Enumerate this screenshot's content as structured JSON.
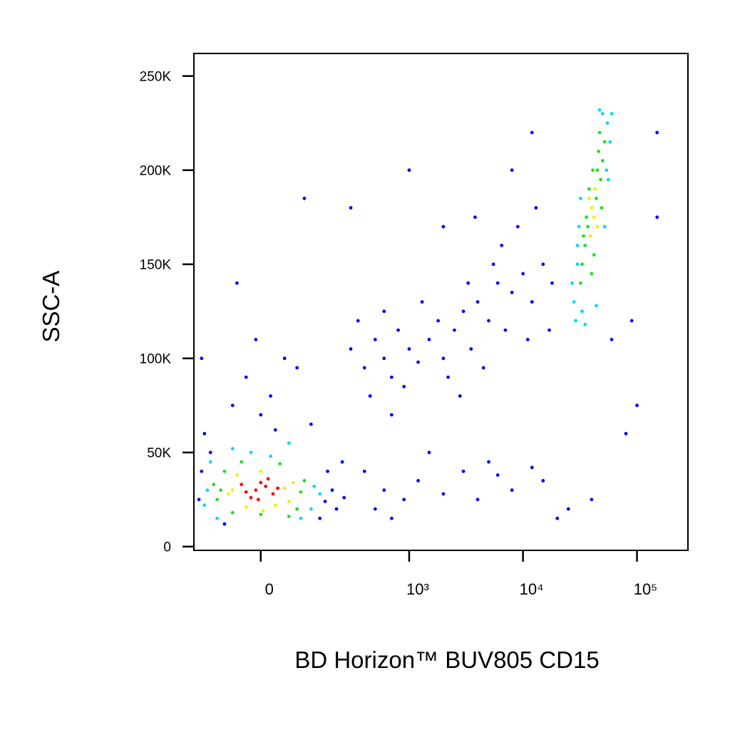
{
  "chart_data": {
    "type": "scatter",
    "xlabel": "BD Horizon™ BUV805 CD15",
    "ylabel": "SSC-A",
    "xscale": "biexponential",
    "xlim": [
      -180,
      280000
    ],
    "ylim": [
      -2000,
      262000
    ],
    "xticks": [
      0,
      {
        "value": 1000,
        "label": "10³"
      },
      {
        "value": 10000,
        "label": "10⁴"
      },
      {
        "value": 100000,
        "label": "10⁵"
      }
    ],
    "yticks": [
      0,
      {
        "value": 50000,
        "label": "50K"
      },
      {
        "value": 100000,
        "label": "100K"
      },
      {
        "value": 150000,
        "label": "150K"
      },
      {
        "value": 200000,
        "label": "200K"
      },
      {
        "value": 250000,
        "label": "250K"
      }
    ],
    "series": [
      {
        "color": "#0000ff",
        "x": [
          -160,
          -150,
          170,
          200,
          220,
          180,
          -140,
          0,
          20,
          -30,
          50,
          -10,
          80,
          -60,
          30,
          120,
          250,
          -120,
          260,
          150,
          -80,
          300,
          400,
          500,
          600,
          700,
          800,
          1000,
          1200,
          1500,
          1800,
          2000,
          2500,
          3000,
          3500,
          4000,
          5000,
          6000,
          7000,
          8000,
          10000,
          12000,
          15000,
          18000,
          600,
          900,
          2200,
          4500,
          1300,
          3300,
          6500,
          9000,
          13000,
          17000,
          450,
          350,
          2800,
          5500,
          700,
          11000,
          3800,
          400,
          600,
          900,
          1200,
          2000,
          3000,
          4000,
          6000,
          8000,
          12000,
          20000,
          25000,
          40000,
          500,
          1500,
          5000,
          700,
          15000,
          100,
          -50,
          300,
          1000,
          2000,
          8000,
          12000,
          150000,
          150000,
          90000,
          100000,
          80000,
          60000,
          -150
        ],
        "y": [
          25000,
          40000,
          24000,
          30000,
          20000,
          40000,
          60000,
          70000,
          80000,
          90000,
          100000,
          110000,
          95000,
          75000,
          62000,
          65000,
          45000,
          50000,
          26000,
          15000,
          12000,
          105000,
          95000,
          110000,
          100000,
          90000,
          115000,
          105000,
          98000,
          110000,
          120000,
          100000,
          115000,
          125000,
          105000,
          130000,
          120000,
          140000,
          115000,
          135000,
          145000,
          130000,
          150000,
          140000,
          125000,
          85000,
          90000,
          95000,
          130000,
          140000,
          160000,
          170000,
          180000,
          115000,
          80000,
          120000,
          80000,
          150000,
          70000,
          110000,
          175000,
          40000,
          30000,
          25000,
          35000,
          28000,
          40000,
          25000,
          38000,
          30000,
          42000,
          15000,
          20000,
          25000,
          20000,
          50000,
          45000,
          15000,
          35000,
          185000,
          140000,
          180000,
          200000,
          170000,
          200000,
          220000,
          220000,
          175000,
          120000,
          75000,
          60000,
          110000,
          100000
        ]
      },
      {
        "color": "#00d8ff",
        "x": [
          -130,
          130,
          -120,
          120,
          -140,
          150,
          -20,
          20,
          -100,
          90,
          -60,
          60,
          28000,
          55000,
          30000,
          58000,
          31000,
          54000,
          29000,
          60000,
          33000,
          50000,
          27000,
          47000,
          35000,
          56000,
          32000,
          52000,
          30000,
          44000
        ],
        "y": [
          30000,
          32000,
          45000,
          20000,
          22000,
          28000,
          50000,
          48000,
          15000,
          15000,
          52000,
          55000,
          130000,
          225000,
          150000,
          215000,
          170000,
          200000,
          120000,
          230000,
          125000,
          230000,
          140000,
          232000,
          118000,
          195000,
          185000,
          170000,
          160000,
          128000
        ]
      },
      {
        "color": "#20e020",
        "x": [
          -90,
          90,
          -80,
          80,
          -100,
          100,
          -40,
          40,
          0,
          -110,
          60,
          -60,
          35000,
          48000,
          37000,
          50000,
          41000,
          33000,
          46000,
          40000,
          52000,
          36000,
          44000,
          47000,
          32000,
          38000,
          42000,
          49000,
          34000,
          45000
        ],
        "y": [
          30000,
          29000,
          40000,
          20000,
          25000,
          35000,
          45000,
          44000,
          17000,
          33000,
          16000,
          18000,
          160000,
          195000,
          170000,
          205000,
          200000,
          150000,
          210000,
          145000,
          215000,
          175000,
          185000,
          220000,
          140000,
          190000,
          155000,
          180000,
          165000,
          200000
        ]
      },
      {
        "color": "#f0f000",
        "x": [
          -60,
          50,
          -50,
          60,
          0,
          -70,
          70,
          -30,
          30,
          5,
          40000,
          42000,
          38000,
          45000,
          43000,
          39000
        ],
        "y": [
          30000,
          31000,
          38000,
          24000,
          40000,
          28000,
          34000,
          21000,
          22000,
          19000,
          180000,
          175000,
          185000,
          170000,
          190000,
          165000
        ]
      },
      {
        "color": "#ff0000",
        "x": [
          -10,
          10,
          -30,
          25,
          0,
          -20,
          15,
          -5,
          35,
          -40
        ],
        "y": [
          30000,
          32000,
          29000,
          28000,
          34000,
          26000,
          36000,
          25000,
          31000,
          33000
        ]
      }
    ]
  }
}
